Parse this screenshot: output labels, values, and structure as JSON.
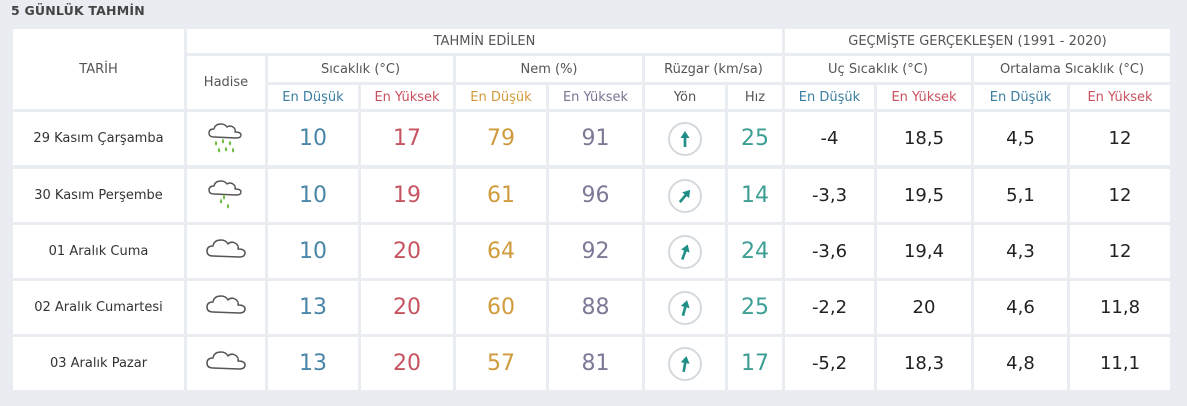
{
  "title": "5 GÜNLÜK TAHMİN",
  "headers": {
    "tarih": "TARİH",
    "hadise": "Hadise",
    "tahmin": "TAHMİN EDİLEN",
    "gecmis": "GEÇMİŞTE GERÇEKLEŞEN (1991 - 2020)",
    "sicaklik": "Sıcaklık (°C)",
    "nem": "Nem (%)",
    "ruzgar": "Rüzgar (km/sa)",
    "uc_sicaklik": "Uç Sıcaklık (°C)",
    "ort_sicaklik": "Ortalama Sıcaklık (°C)",
    "en_dusuk": "En Düşük",
    "en_yuksek": "En Yüksek",
    "yon": "Yön",
    "hiz": "Hız"
  },
  "colors": {
    "low": "#4a86a6",
    "high": "#c65561",
    "nem_low": "#cf9b3d",
    "nem_high": "#7e7896",
    "wind": "#3d9f94"
  },
  "rows": [
    {
      "date": "29 Kasım Çarşamba",
      "icon": "rain-icon",
      "t_min": "10",
      "t_max": "17",
      "nem_min": "79",
      "nem_max": "91",
      "wind_speed": "25",
      "wind_dir_deg": 0,
      "uc_min": "-4",
      "uc_max": "18,5",
      "ort_min": "4,5",
      "ort_max": "12"
    },
    {
      "date": "30 Kasım Perşembe",
      "icon": "light-rain-icon",
      "t_min": "10",
      "t_max": "19",
      "nem_min": "61",
      "nem_max": "96",
      "wind_speed": "14",
      "wind_dir_deg": 40,
      "uc_min": "-3,3",
      "uc_max": "19,5",
      "ort_min": "5,1",
      "ort_max": "12"
    },
    {
      "date": "01 Aralık Cuma",
      "icon": "cloud-icon",
      "t_min": "10",
      "t_max": "20",
      "nem_min": "64",
      "nem_max": "92",
      "wind_speed": "24",
      "wind_dir_deg": 20,
      "uc_min": "-3,6",
      "uc_max": "19,4",
      "ort_min": "4,3",
      "ort_max": "12"
    },
    {
      "date": "02 Aralık Cumartesi",
      "icon": "cloud-icon",
      "t_min": "13",
      "t_max": "20",
      "nem_min": "60",
      "nem_max": "88",
      "wind_speed": "25",
      "wind_dir_deg": 15,
      "uc_min": "-2,2",
      "uc_max": "20",
      "ort_min": "4,6",
      "ort_max": "11,8"
    },
    {
      "date": "03 Aralık Pazar",
      "icon": "cloud-icon",
      "t_min": "13",
      "t_max": "20",
      "nem_min": "57",
      "nem_max": "81",
      "wind_speed": "17",
      "wind_dir_deg": 10,
      "uc_min": "-5,2",
      "uc_max": "18,3",
      "ort_min": "4,8",
      "ort_max": "11,1"
    }
  ]
}
